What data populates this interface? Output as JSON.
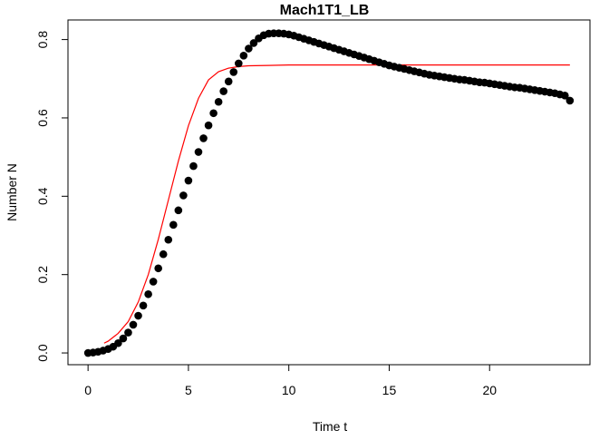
{
  "chart_data": {
    "type": "scatter",
    "title": "Mach1T1_LB",
    "xlabel": "Time t",
    "ylabel": "Number N",
    "xlim": [
      -1,
      25
    ],
    "ylim": [
      -0.03,
      0.85
    ],
    "grid": false,
    "legend": "none",
    "x_ticks": [
      0,
      5,
      10,
      15,
      20
    ],
    "x_tick_labels": [
      "0",
      "5",
      "10",
      "15",
      "20"
    ],
    "y_ticks": [
      0.0,
      0.2,
      0.4,
      0.6,
      0.8
    ],
    "y_tick_labels": [
      "0.0",
      "0.2",
      "0.4",
      "0.6",
      "0.8"
    ],
    "series": [
      {
        "kind": "points",
        "color": "#000000",
        "x": [
          0,
          0.25,
          0.5,
          0.75,
          1.0,
          1.25,
          1.5,
          1.75,
          2.0,
          2.25,
          2.5,
          2.75,
          3.0,
          3.25,
          3.5,
          3.75,
          4.0,
          4.25,
          4.5,
          4.75,
          5.0,
          5.25,
          5.5,
          5.75,
          6.0,
          6.25,
          6.5,
          6.75,
          7.0,
          7.25,
          7.5,
          7.75,
          8.0,
          8.25,
          8.5,
          8.75,
          9.0,
          9.25,
          9.5,
          9.75,
          10.0,
          10.25,
          10.5,
          10.75,
          11.0,
          11.25,
          11.5,
          11.75,
          12.0,
          12.25,
          12.5,
          12.75,
          13.0,
          13.25,
          13.5,
          13.75,
          14.0,
          14.25,
          14.5,
          14.75,
          15.0,
          15.25,
          15.5,
          15.75,
          16.0,
          16.25,
          16.5,
          16.75,
          17.0,
          17.25,
          17.5,
          17.75,
          18.0,
          18.25,
          18.5,
          18.75,
          19.0,
          19.25,
          19.5,
          19.75,
          20.0,
          20.25,
          20.5,
          20.75,
          21.0,
          21.25,
          21.5,
          21.75,
          22.0,
          22.25,
          22.5,
          22.75,
          23.0,
          23.25,
          23.5,
          23.75,
          24.0
        ],
        "y": [
          0.0,
          0.001,
          0.003,
          0.006,
          0.01,
          0.016,
          0.025,
          0.037,
          0.052,
          0.072,
          0.095,
          0.121,
          0.15,
          0.182,
          0.216,
          0.252,
          0.289,
          0.327,
          0.364,
          0.402,
          0.44,
          0.477,
          0.513,
          0.548,
          0.581,
          0.612,
          0.641,
          0.668,
          0.693,
          0.717,
          0.739,
          0.759,
          0.777,
          0.791,
          0.803,
          0.811,
          0.815,
          0.816,
          0.816,
          0.815,
          0.813,
          0.81,
          0.806,
          0.802,
          0.798,
          0.794,
          0.79,
          0.786,
          0.782,
          0.778,
          0.774,
          0.77,
          0.766,
          0.762,
          0.758,
          0.754,
          0.75,
          0.746,
          0.742,
          0.738,
          0.734,
          0.731,
          0.728,
          0.725,
          0.722,
          0.719,
          0.716,
          0.713,
          0.71,
          0.708,
          0.706,
          0.704,
          0.702,
          0.7,
          0.698,
          0.697,
          0.695,
          0.693,
          0.691,
          0.69,
          0.688,
          0.686,
          0.684,
          0.682,
          0.68,
          0.678,
          0.677,
          0.675,
          0.673,
          0.671,
          0.669,
          0.667,
          0.665,
          0.663,
          0.66,
          0.657,
          0.644
        ]
      },
      {
        "kind": "line",
        "color": "#ff0000",
        "x": [
          0.8,
          1.0,
          1.5,
          2.0,
          2.5,
          3.0,
          3.5,
          4.0,
          4.5,
          5.0,
          5.5,
          6.0,
          6.5,
          7.0,
          7.5,
          8.0,
          9.0,
          10.0,
          12.0,
          14.0,
          16.0,
          18.0,
          20.0,
          22.0,
          24.0
        ],
        "y": [
          0.025,
          0.03,
          0.05,
          0.08,
          0.13,
          0.2,
          0.29,
          0.39,
          0.49,
          0.58,
          0.65,
          0.697,
          0.718,
          0.727,
          0.731,
          0.733,
          0.734,
          0.735,
          0.735,
          0.735,
          0.735,
          0.735,
          0.735,
          0.735,
          0.735
        ]
      }
    ]
  }
}
